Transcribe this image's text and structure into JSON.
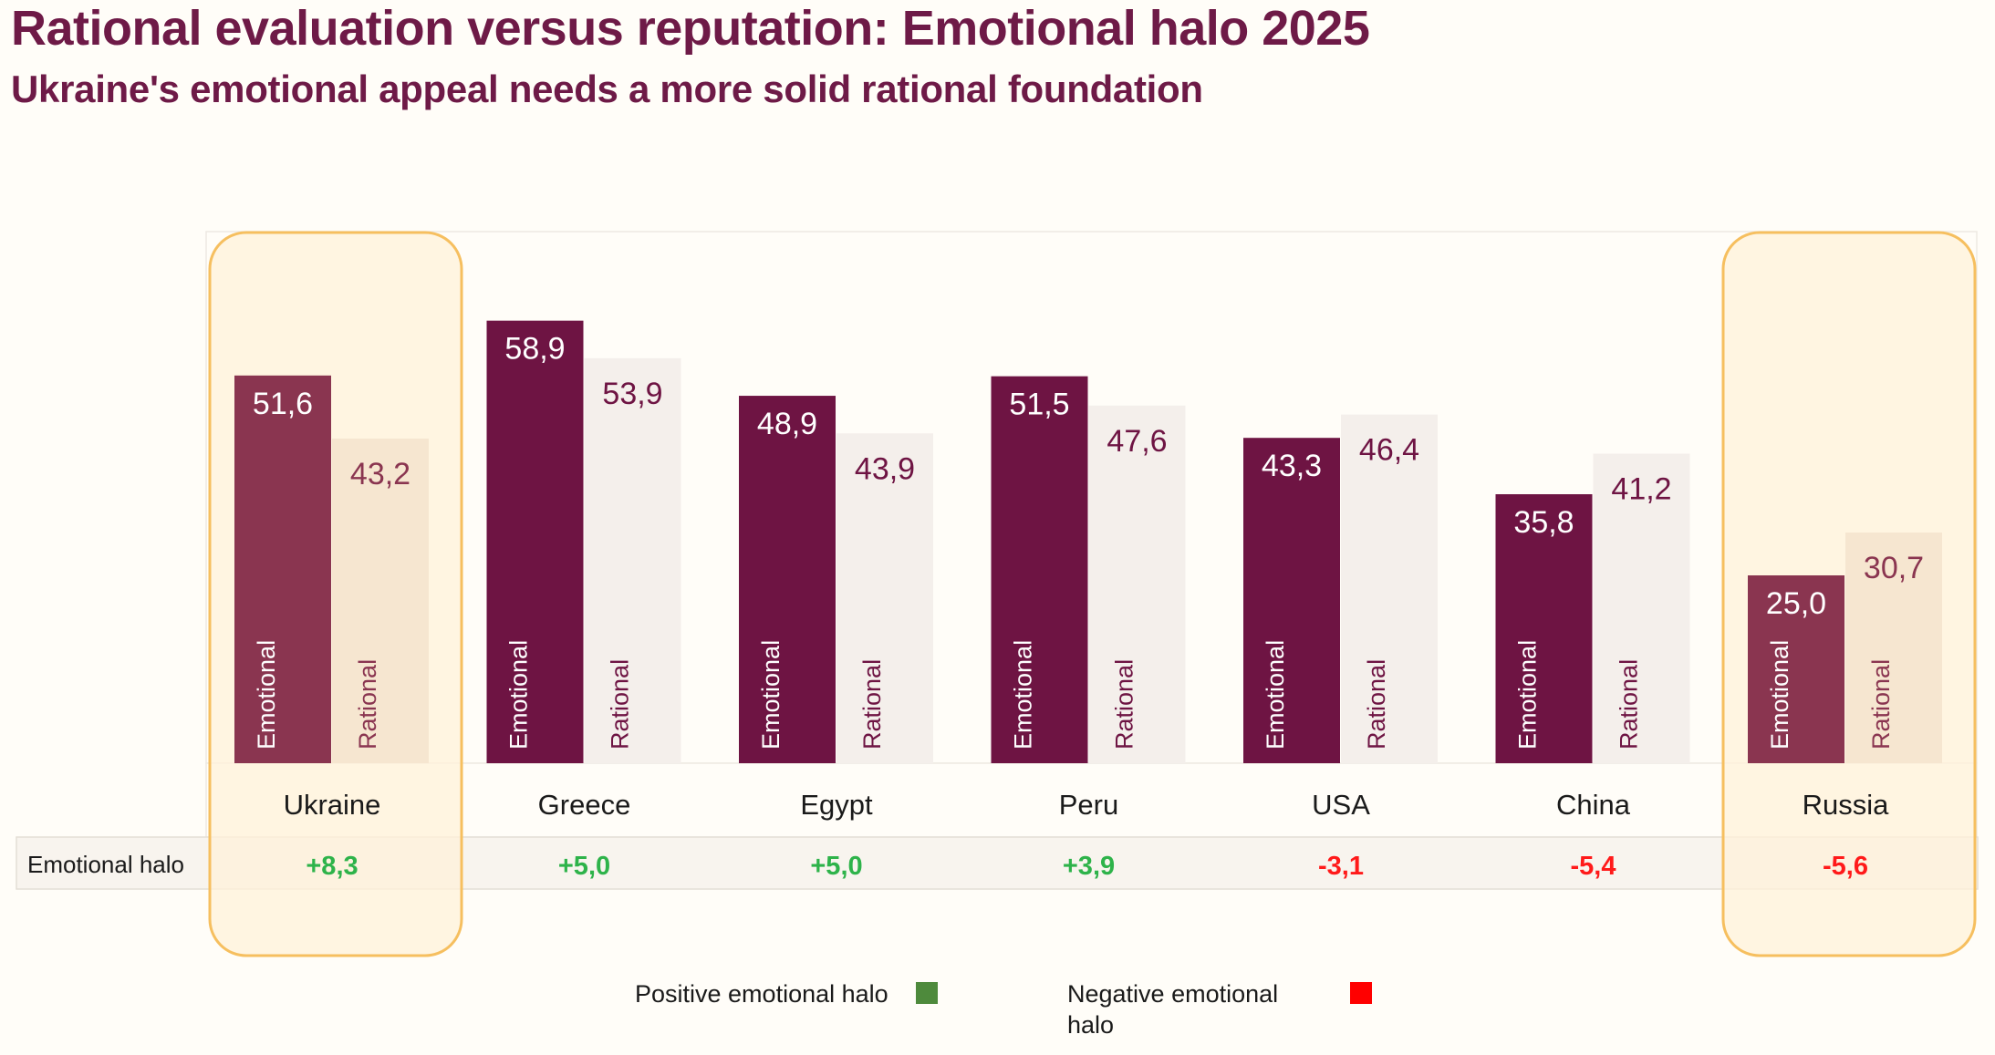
{
  "header": {
    "title": "Rational evaluation versus reputation: Emotional halo 2025",
    "subtitle": "Ukraine's emotional appeal needs a more solid rational foundation"
  },
  "chart_data": {
    "type": "bar",
    "categories": [
      "Ukraine",
      "Greece",
      "Egypt",
      "Peru",
      "USA",
      "China",
      "Russia"
    ],
    "series": [
      {
        "name": "Emotional",
        "values": [
          51.6,
          58.9,
          48.9,
          51.5,
          43.3,
          35.8,
          25.0
        ]
      },
      {
        "name": "Rational",
        "values": [
          43.2,
          53.9,
          43.9,
          47.6,
          46.4,
          41.2,
          30.7
        ]
      }
    ],
    "value_labels": {
      "emotional": [
        "51,6",
        "58,9",
        "48,9",
        "51,5",
        "43,3",
        "35,8",
        "25,0"
      ],
      "rational": [
        "43,2",
        "53,9",
        "43,9",
        "47,6",
        "46,4",
        "41,2",
        "30,7"
      ]
    },
    "bar_labels": {
      "emotional": "Emotional",
      "rational": "Rational"
    },
    "highlighted_categories": [
      "Ukraine",
      "Russia"
    ],
    "halo_row": {
      "label": "Emotional halo",
      "values": [
        8.3,
        5.0,
        5.0,
        3.9,
        -3.1,
        -5.4,
        -5.6
      ],
      "display": [
        "+8,3",
        "+5,0",
        "+5,0",
        "+3,9",
        "-3,1",
        "-5,4",
        "-5,6"
      ]
    },
    "legend": [
      {
        "label": "Positive emotional halo",
        "color": "#4e8a3c"
      },
      {
        "label": "Negative emotional halo",
        "color": "#ff0000"
      }
    ],
    "ylim": [
      0,
      70
    ]
  },
  "colors": {
    "title": "#6e1a47",
    "emotional": "#6e1443",
    "emotional_highlight": "#8a3550",
    "rational": "#f4efeb",
    "rational_highlight": "#f6e6d0",
    "highlight_fill": "#fff2da",
    "highlight_border": "#f6bf5f",
    "positive": "#2eb34a",
    "negative": "#ff1a1a"
  }
}
